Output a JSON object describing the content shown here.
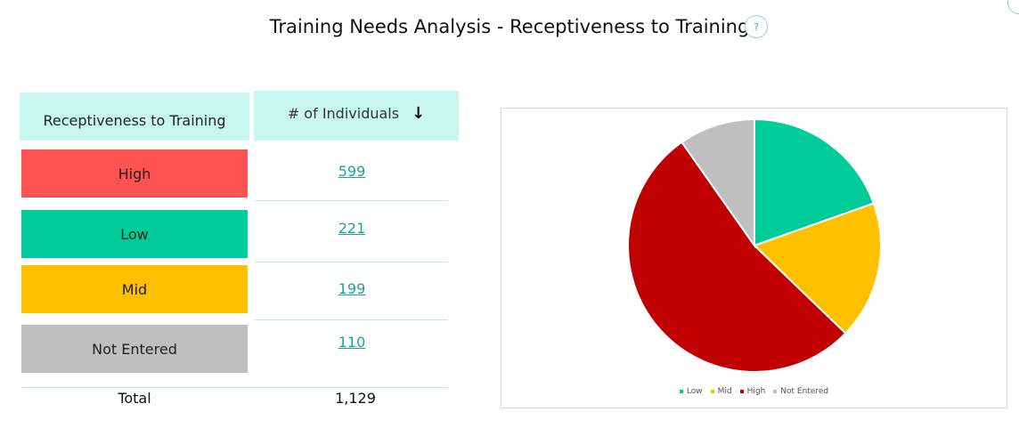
{
  "title": "Training Needs Analysis - Receptiveness to Training",
  "help_label": "?",
  "table": {
    "header_category": "Receptiveness to Training",
    "header_count": "# of Individuals",
    "sort_icon": "arrow-down-icon",
    "rows": [
      {
        "label": "High",
        "value": "599",
        "color": "#ff5252"
      },
      {
        "label": "Low",
        "value": "221",
        "color": "#00cc99"
      },
      {
        "label": "Mid",
        "value": "199",
        "color": "#ffc000"
      },
      {
        "label": "Not Entered",
        "value": "110",
        "color": "#bfbfbf"
      }
    ],
    "total_label": "Total",
    "total_value": "1,129"
  },
  "chart_data": {
    "type": "pie",
    "categories": [
      "Low",
      "Mid",
      "High",
      "Not Entered"
    ],
    "values": [
      221,
      199,
      599,
      110
    ],
    "colors": [
      "#00cc99",
      "#ffc000",
      "#c00000",
      "#bfbfbf"
    ],
    "legend": [
      "Low",
      "Mid",
      "High",
      "Not Entered"
    ],
    "legend_position": "bottom"
  }
}
